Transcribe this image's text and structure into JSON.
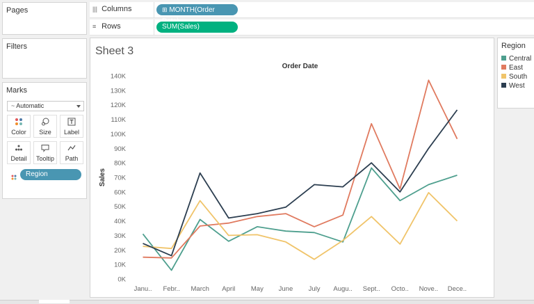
{
  "panes": {
    "pages_title": "Pages",
    "filters_title": "Filters",
    "marks_title": "Marks"
  },
  "marks": {
    "type_label": "Automatic",
    "buttons": [
      {
        "label": "Color",
        "icon": "color-icon"
      },
      {
        "label": "Size",
        "icon": "size-icon"
      },
      {
        "label": "Label",
        "icon": "label-icon"
      },
      {
        "label": "Detail",
        "icon": "detail-icon"
      },
      {
        "label": "Tooltip",
        "icon": "tooltip-icon"
      },
      {
        "label": "Path",
        "icon": "path-icon"
      }
    ],
    "field_pill": "Region"
  },
  "shelves": {
    "columns_label": "Columns",
    "columns_pill": "MONTH(Order Date)",
    "rows_label": "Rows",
    "rows_pill": "SUM(Sales)"
  },
  "sheet": {
    "title": "Sheet 3"
  },
  "legend": {
    "title": "Region",
    "items": [
      {
        "label": "Central",
        "color": "#4e9f8e"
      },
      {
        "label": "East",
        "color": "#e07a5f"
      },
      {
        "label": "South",
        "color": "#f0c46a"
      },
      {
        "label": "West",
        "color": "#2c3e50"
      }
    ]
  },
  "chart_data": {
    "type": "line",
    "title": "Order Date",
    "ylabel": "Sales",
    "xlabel": "",
    "ylim": [
      0,
      140000
    ],
    "yticks": [
      0,
      10000,
      20000,
      30000,
      40000,
      50000,
      60000,
      70000,
      80000,
      90000,
      100000,
      110000,
      120000,
      130000,
      140000
    ],
    "ytick_labels": [
      "0K",
      "10K",
      "20K",
      "30K",
      "40K",
      "50K",
      "60K",
      "70K",
      "80K",
      "90K",
      "100K",
      "110K",
      "120K",
      "130K",
      "140K"
    ],
    "categories": [
      "Janu..",
      "Febr..",
      "March",
      "April",
      "May",
      "June",
      "July",
      "Augu..",
      "Sept..",
      "Octo..",
      "Nove..",
      "Dece.."
    ],
    "grid": false,
    "legend": "right",
    "series": [
      {
        "name": "Central",
        "color": "#4e9f8e",
        "values": [
          31000,
          6000,
          41000,
          26000,
          36000,
          33000,
          32000,
          25500,
          76500,
          54000,
          65000,
          71500
        ]
      },
      {
        "name": "East",
        "color": "#e07a5f",
        "values": [
          15000,
          14500,
          36500,
          38500,
          43000,
          45000,
          36000,
          44000,
          107000,
          62000,
          137000,
          96500
        ]
      },
      {
        "name": "South",
        "color": "#f0c46a",
        "values": [
          22500,
          21000,
          54000,
          30000,
          30500,
          25500,
          13500,
          26500,
          43000,
          24000,
          59500,
          40000
        ]
      },
      {
        "name": "West",
        "color": "#2c3e50",
        "values": [
          24500,
          16000,
          73000,
          42000,
          45000,
          49500,
          65000,
          63500,
          80000,
          60000,
          90000,
          116500
        ]
      }
    ]
  }
}
